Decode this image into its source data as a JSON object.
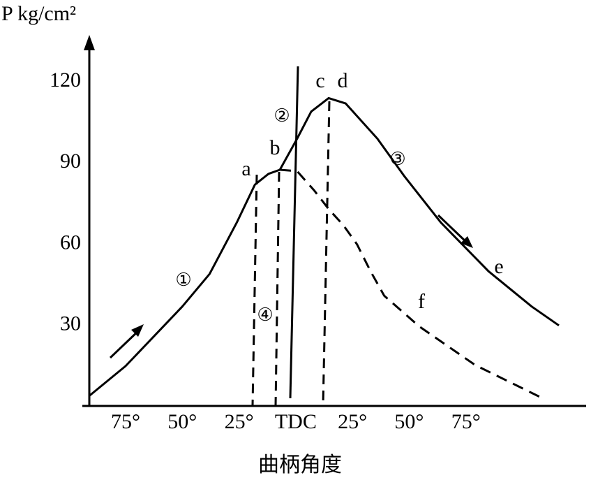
{
  "chart_data": {
    "type": "line",
    "y_label": "P kg/cm²",
    "x_label": "曲柄角度",
    "xlim": [
      -91,
      128
    ],
    "ylim": [
      0,
      135
    ],
    "xticks": [
      {
        "value": -75,
        "label": "75°"
      },
      {
        "value": -50,
        "label": "50°"
      },
      {
        "value": -25,
        "label": "25°"
      },
      {
        "value": 0,
        "label": "TDC"
      },
      {
        "value": 25,
        "label": "25°"
      },
      {
        "value": 50,
        "label": "50°"
      },
      {
        "value": 75,
        "label": "75°"
      }
    ],
    "yticks": [
      30,
      60,
      90,
      120
    ],
    "series": [
      {
        "color": "#000000",
        "line_style": "solid",
        "x": [
          -91,
          -75,
          -50,
          -38,
          -26,
          -18,
          -12,
          -7,
          0.6,
          6.8,
          14.5,
          22,
          36,
          48,
          64,
          85,
          104,
          116
        ],
        "values": [
          4,
          15,
          37,
          49,
          68,
          82,
          86,
          87.5,
          99,
          109,
          114,
          112,
          99,
          85,
          68,
          50,
          37,
          30
        ]
      },
      {
        "color": "#000000",
        "line_style": "dashed",
        "x": [
          -7,
          0.6,
          8,
          14.5,
          21,
          27,
          33,
          39,
          54.5,
          79,
          110
        ],
        "values": [
          87.5,
          87,
          80,
          73,
          67,
          60,
          50,
          41,
          29.6,
          15.4,
          2.6
        ]
      }
    ],
    "annotations": [
      {
        "text": "a"
      },
      {
        "text": "b"
      },
      {
        "text": "c"
      },
      {
        "text": "d"
      },
      {
        "text": "e"
      },
      {
        "text": "f"
      },
      {
        "text": "①"
      },
      {
        "text": "②"
      },
      {
        "text": "③"
      },
      {
        "text": "④"
      }
    ]
  }
}
